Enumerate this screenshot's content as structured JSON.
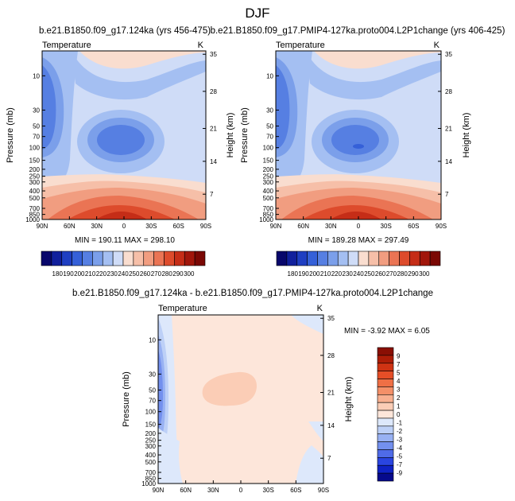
{
  "page_title": "DJF",
  "chart_data": [
    {
      "type": "heatmap",
      "title": "b.e21.B1850.f09_g17.124ka (yrs 456-475)",
      "variable": "Temperature",
      "units": "K",
      "xlabel": "",
      "ylabel": "Pressure (mb)",
      "ylabel_right": "Height (km)",
      "x_ticks": [
        "90N",
        "60N",
        "30N",
        "0",
        "30S",
        "60S",
        "90S"
      ],
      "y_ticks": [
        "10",
        "30",
        "50",
        "70",
        "100",
        "150",
        "200",
        "250",
        "300",
        "400",
        "500",
        "700",
        "850",
        "1000"
      ],
      "height_ticks": [
        "35",
        "28",
        "21",
        "14",
        "7"
      ],
      "stats": "MIN = 190.11   MAX = 298.10",
      "colorbar": {
        "colors": [
          "#08076b",
          "#11209c",
          "#1f3fc2",
          "#3560d8",
          "#567fe2",
          "#7b9fea",
          "#a4bff2",
          "#cfdcf7",
          "#f9ddcf",
          "#f6bfa8",
          "#f19d80",
          "#ea7454",
          "#dd4b2c",
          "#c52d17",
          "#a1160b",
          "#7a0804"
        ],
        "labels": [
          "180",
          "190",
          "200",
          "210",
          "220",
          "230",
          "240",
          "250",
          "260",
          "270",
          "280",
          "290",
          "300"
        ]
      }
    },
    {
      "type": "heatmap",
      "title": "b.e21.B1850.f09_g17.PMIP4-127ka.proto004.L2P1change (yrs 406-425)",
      "variable": "Temperature",
      "units": "K",
      "xlabel": "",
      "ylabel": "Pressure (mb)",
      "ylabel_right": "Height (km)",
      "x_ticks": [
        "90N",
        "60N",
        "30N",
        "0",
        "30S",
        "60S",
        "90S"
      ],
      "y_ticks": [
        "10",
        "30",
        "50",
        "70",
        "100",
        "150",
        "200",
        "250",
        "300",
        "400",
        "500",
        "700",
        "850",
        "1000"
      ],
      "height_ticks": [
        "35",
        "28",
        "21",
        "14",
        "7"
      ],
      "stats": "MIN = 189.28   MAX = 297.49",
      "colorbar": {
        "colors": [
          "#08076b",
          "#11209c",
          "#1f3fc2",
          "#3560d8",
          "#567fe2",
          "#7b9fea",
          "#a4bff2",
          "#cfdcf7",
          "#f9ddcf",
          "#f6bfa8",
          "#f19d80",
          "#ea7454",
          "#dd4b2c",
          "#c52d17",
          "#a1160b",
          "#7a0804"
        ],
        "labels": [
          "180",
          "190",
          "200",
          "210",
          "220",
          "230",
          "240",
          "250",
          "260",
          "270",
          "280",
          "290",
          "300"
        ]
      }
    },
    {
      "type": "heatmap",
      "title": "b.e21.B1850.f09_g17.124ka - b.e21.B1850.f09_g17.PMIP4-127ka.proto004.L2P1change",
      "variable": "Temperature",
      "units": "K",
      "xlabel": "",
      "ylabel": "Pressure (mb)",
      "ylabel_right": "Height (km)",
      "x_ticks": [
        "90N",
        "60N",
        "30N",
        "0",
        "30S",
        "60S",
        "90S"
      ],
      "y_ticks": [
        "10",
        "30",
        "50",
        "70",
        "100",
        "150",
        "200",
        "250",
        "300",
        "400",
        "500",
        "700",
        "850",
        "1000"
      ],
      "height_ticks": [
        "35",
        "28",
        "21",
        "14",
        "7"
      ],
      "stats": "MIN =  -3.92   MAX =   6.05",
      "colorbar": {
        "colors": [
          "#060a8c",
          "#0f22c4",
          "#2a45e0",
          "#4f6be8",
          "#7390ee",
          "#98b1f3",
          "#bdd0f7",
          "#dde8fb",
          "#fde6da",
          "#fbcdb6",
          "#f8b090",
          "#f49068",
          "#ef6f45",
          "#e54e27",
          "#cf3313",
          "#ad1d07",
          "#8a0f04"
        ],
        "labels": [
          "-9",
          "-7",
          "-5",
          "-4",
          "-3",
          "-2",
          "-1",
          "0",
          "1",
          "2",
          "3",
          "4",
          "5",
          "7",
          "9"
        ]
      }
    }
  ]
}
